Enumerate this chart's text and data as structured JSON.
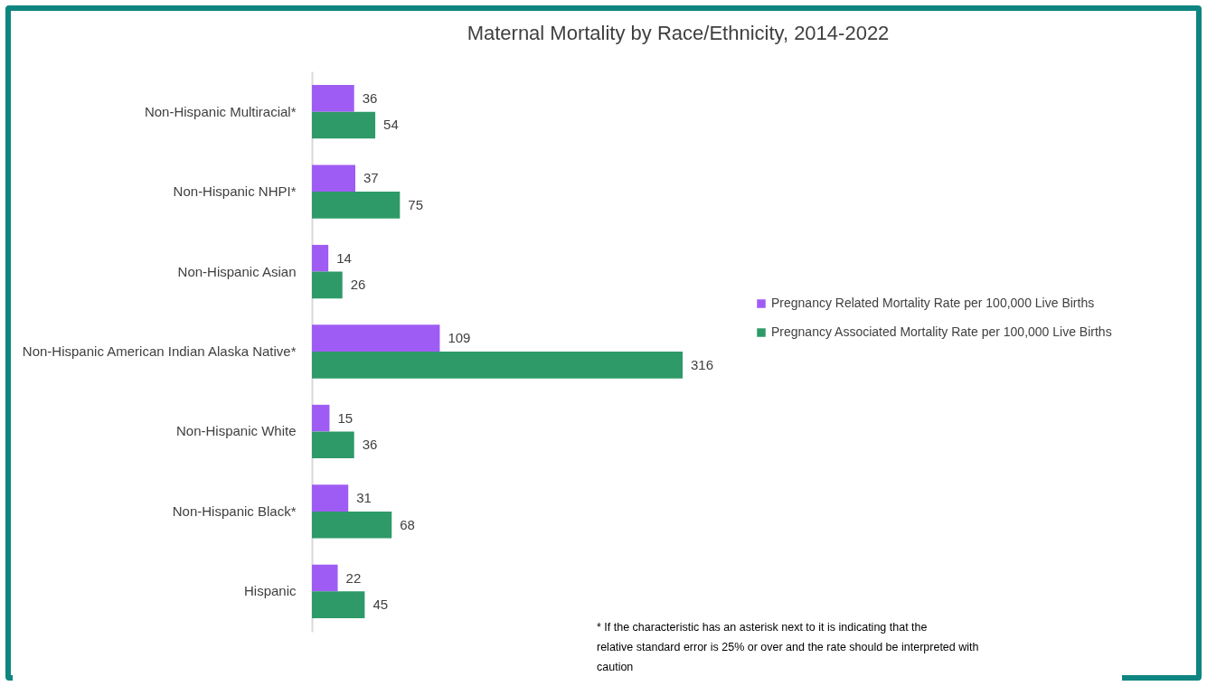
{
  "chart_data": {
    "type": "bar",
    "orientation": "horizontal",
    "title": "Maternal Mortality by Race/Ethnicity, 2014-2022",
    "categories": [
      "Non-Hispanic Multiracial*",
      "Non-Hispanic NHPI*",
      "Non-Hispanic Asian",
      "Non-Hispanic American Indian Alaska Native*",
      "Non-Hispanic White",
      "Non-Hispanic Black*",
      "Hispanic"
    ],
    "series": [
      {
        "name": "Pregnancy Related Mortality Rate per 100,000 Live Births",
        "color": "#9f5cf4",
        "values": [
          36,
          37,
          14,
          109,
          15,
          31,
          22
        ]
      },
      {
        "name": "Pregnancy Associated Mortality Rate per 100,000 Live Births",
        "color": "#2e9a68",
        "values": [
          54,
          75,
          26,
          316,
          36,
          68,
          45
        ]
      }
    ],
    "data_labels": true,
    "legend": "right",
    "tick_labels": "y",
    "grid": false,
    "annotations": [
      "* If the characteristic has an asterisk next to it is indicating that the relative standard error is 25% or over and the rate should be interpreted with caution"
    ]
  }
}
